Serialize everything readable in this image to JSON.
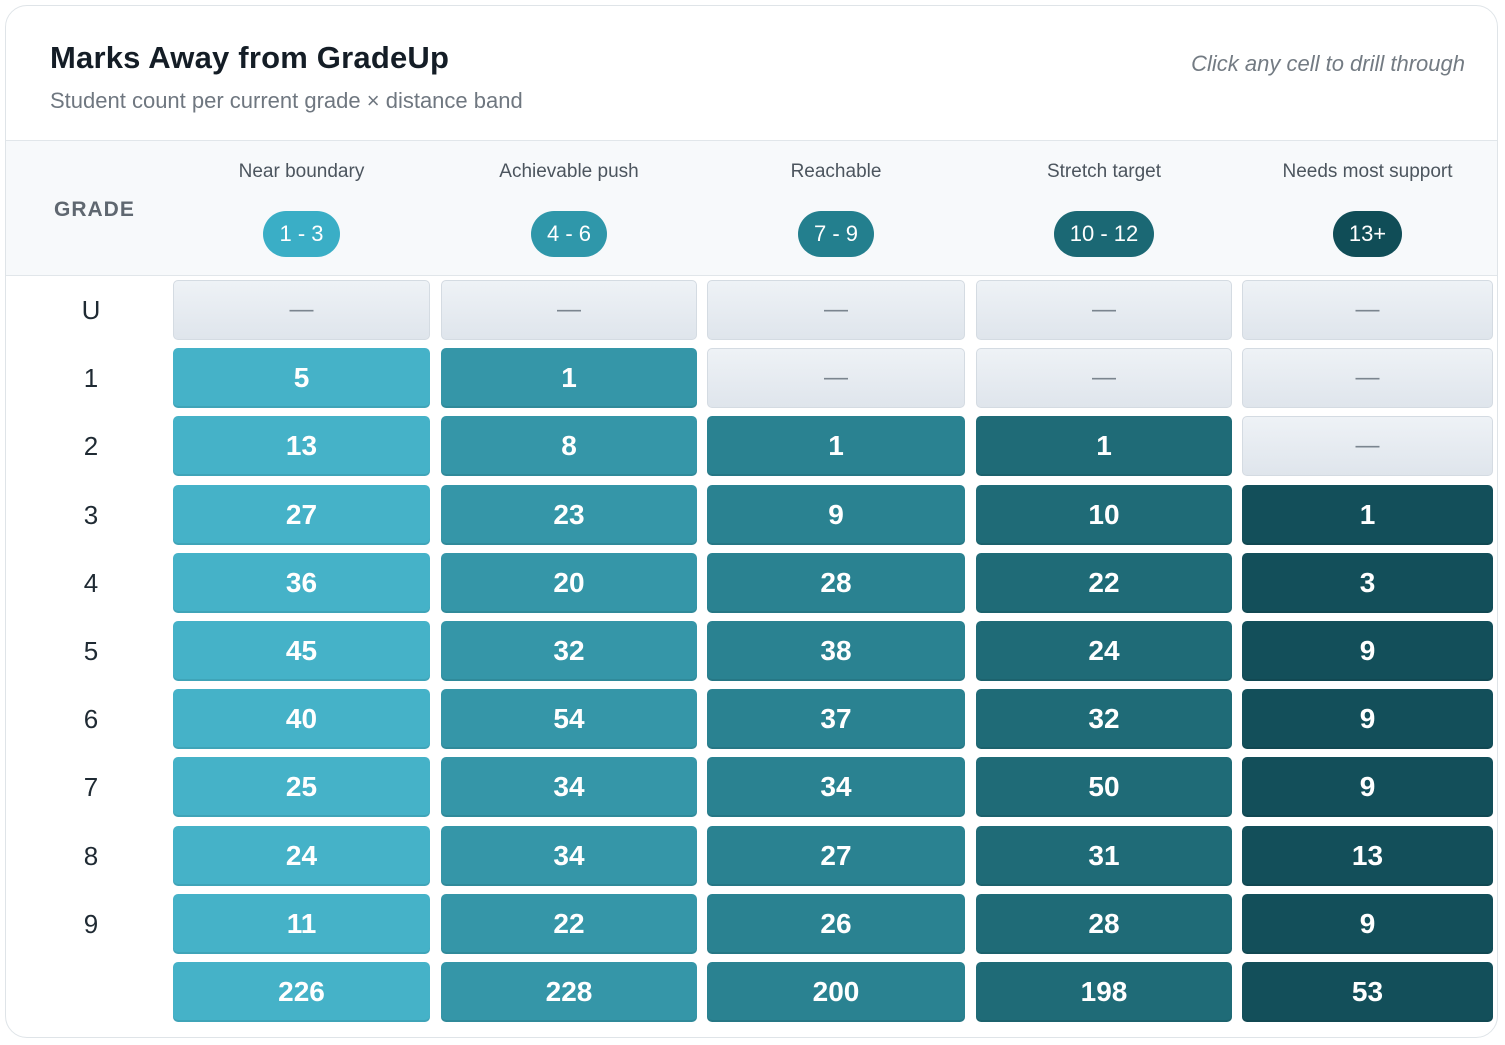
{
  "header": {
    "title": "Marks Away from GradeUp",
    "subtitle": "Student count per current grade × distance band",
    "hint": "Click any cell to drill through"
  },
  "grade_column_label": "GRADE",
  "empty_symbol": "—",
  "colors": {
    "empty_cell": "#e6ebf0",
    "band_colors": [
      "#45b2c8",
      "#3596a8",
      "#2a8291",
      "#1f6b77",
      "#134f5a"
    ],
    "band_pill_colors": [
      "#3aaec6",
      "#2f97aa",
      "#237f8e",
      "#1b6874",
      "#104d57"
    ]
  },
  "chart_data": {
    "type": "heatmap",
    "title": "Marks Away from GradeUp",
    "subtitle": "Student count per current grade × distance band",
    "row_header": "GRADE",
    "columns": [
      {
        "name": "Near boundary",
        "range": "1 - 3"
      },
      {
        "name": "Achievable push",
        "range": "4 - 6"
      },
      {
        "name": "Reachable",
        "range": "7 - 9"
      },
      {
        "name": "Stretch target",
        "range": "10 - 12"
      },
      {
        "name": "Needs most support",
        "range": "13+"
      }
    ],
    "rows": [
      {
        "grade": "U",
        "values": [
          null,
          null,
          null,
          null,
          null
        ]
      },
      {
        "grade": "1",
        "values": [
          5,
          1,
          null,
          null,
          null
        ]
      },
      {
        "grade": "2",
        "values": [
          13,
          8,
          1,
          1,
          null
        ]
      },
      {
        "grade": "3",
        "values": [
          27,
          23,
          9,
          10,
          1
        ]
      },
      {
        "grade": "4",
        "values": [
          36,
          20,
          28,
          22,
          3
        ]
      },
      {
        "grade": "5",
        "values": [
          45,
          32,
          38,
          24,
          9
        ]
      },
      {
        "grade": "6",
        "values": [
          40,
          54,
          37,
          32,
          9
        ]
      },
      {
        "grade": "7",
        "values": [
          25,
          34,
          34,
          50,
          9
        ]
      },
      {
        "grade": "8",
        "values": [
          24,
          34,
          27,
          31,
          13
        ]
      },
      {
        "grade": "9",
        "values": [
          11,
          22,
          26,
          28,
          9
        ]
      }
    ],
    "totals": {
      "grade": "",
      "values": [
        226,
        228,
        200,
        198,
        53
      ]
    }
  }
}
